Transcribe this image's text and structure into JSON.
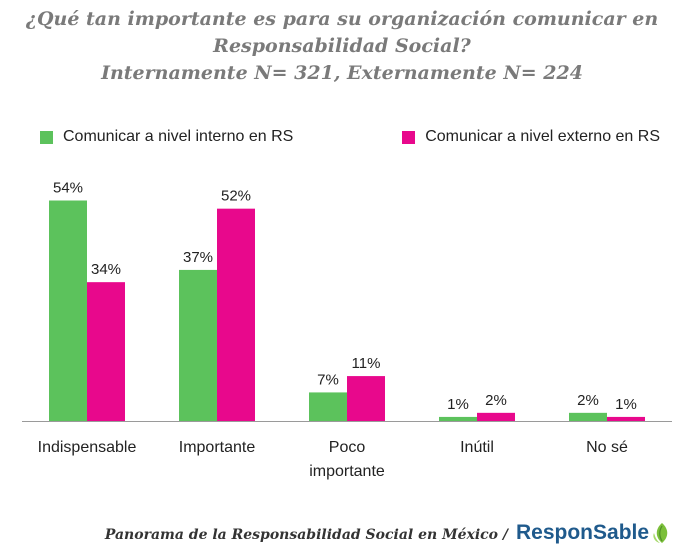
{
  "title": {
    "line1": "¿Qué tan importante es para su organización comunicar en",
    "line2": "Responsabilidad Social?",
    "line3": "Internamente N= 321, Externamente N= 224"
  },
  "chart_data": {
    "type": "bar",
    "categories": [
      "Indispensable",
      "Importante",
      "Poco importante",
      "Inútil",
      "No sé"
    ],
    "category_lines": [
      [
        "Indispensable"
      ],
      [
        "Importante"
      ],
      [
        "Poco",
        "importante"
      ],
      [
        "Inútil"
      ],
      [
        "No sé"
      ]
    ],
    "series": [
      {
        "name": "Comunicar a nivel interno en RS",
        "values": [
          54,
          37,
          7,
          1,
          2
        ],
        "labels": [
          "54%",
          "37%",
          "7%",
          "1%",
          "2%"
        ],
        "color": "#5cc25c"
      },
      {
        "name": "Comunicar a nivel externo en RS",
        "values": [
          34,
          52,
          11,
          2,
          1
        ],
        "labels": [
          "34%",
          "52%",
          "11%",
          "2%",
          "1%"
        ],
        "color": "#e8088c"
      }
    ],
    "ylim": [
      0,
      60
    ],
    "grid": false,
    "legend_position": "top"
  },
  "footer": {
    "source": "Panorama de la Responsabilidad Social en México  /",
    "logo_text": "ResponSable",
    "logo_icon": "leaf-icon"
  },
  "colors": {
    "logo_blue": "#1f5a8c",
    "logo_green": "#7bbf3a",
    "title_gray": "#7a7a7a"
  }
}
